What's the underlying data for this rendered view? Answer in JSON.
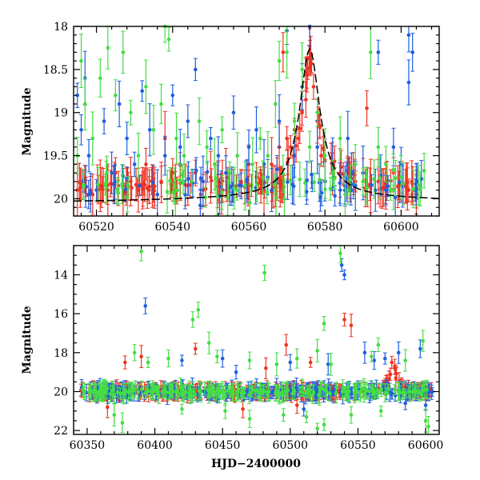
{
  "chart_data": [
    {
      "type": "scatter",
      "panel": "top",
      "title": "",
      "xlabel": "",
      "ylabel": "Magnitude",
      "xlim": [
        60514,
        60610
      ],
      "ylim": [
        20.2,
        18.0
      ],
      "y_inverted": true,
      "xticks": [
        60520,
        60540,
        60560,
        60580,
        60600
      ],
      "yticks": [
        18,
        18.5,
        19,
        19.5,
        20
      ],
      "ytick_labels": [
        "18",
        "18.5",
        "19",
        "19.5",
        "20"
      ],
      "grid": false,
      "legend": "none",
      "series": [
        {
          "color": "#ee3322",
          "values_xy": [
            [
              60515,
              19.9
            ],
            [
              60517,
              19.8
            ],
            [
              60519,
              19.95
            ],
            [
              60521,
              19.85
            ],
            [
              60523,
              19.9
            ],
            [
              60525,
              19.7
            ],
            [
              60527,
              19.95
            ],
            [
              60529,
              19.8
            ],
            [
              60531,
              19.9
            ],
            [
              60533,
              19.6
            ],
            [
              60535,
              19.9
            ],
            [
              60537,
              19.8
            ],
            [
              60538,
              19.3
            ],
            [
              60540,
              19.7
            ],
            [
              60542,
              19.6
            ],
            [
              60544,
              19.85
            ],
            [
              60546,
              19.7
            ],
            [
              60548,
              19.9
            ],
            [
              60550,
              19.75
            ],
            [
              60552,
              19.8
            ],
            [
              60554,
              19.7
            ],
            [
              60556,
              19.85
            ],
            [
              60558,
              19.8
            ],
            [
              60560,
              19.6
            ],
            [
              60562,
              19.75
            ],
            [
              60564,
              19.9
            ],
            [
              60566,
              19.6
            ],
            [
              60568,
              19.4
            ],
            [
              60569,
              18.3
            ],
            [
              60570,
              19.3
            ],
            [
              60571,
              19.4
            ],
            [
              60572,
              19.2
            ],
            [
              60573,
              19.3
            ],
            [
              60574,
              19.0
            ],
            [
              60575,
              18.85
            ],
            [
              60576,
              18.3
            ],
            [
              60577,
              18.7
            ],
            [
              60578,
              19.1
            ],
            [
              60579,
              19.5
            ],
            [
              60580,
              19.55
            ],
            [
              60582,
              19.65
            ],
            [
              60584,
              19.7
            ],
            [
              60586,
              19.75
            ],
            [
              60588,
              19.8
            ],
            [
              60590,
              19.7
            ],
            [
              60591,
              18.95
            ],
            [
              60592,
              19.85
            ],
            [
              60594,
              19.8
            ],
            [
              60596,
              19.85
            ],
            [
              60598,
              19.7
            ],
            [
              60600,
              19.75
            ],
            [
              60602,
              19.9
            ],
            [
              60604,
              19.95
            ]
          ]
        },
        {
          "color": "#1f5fe0",
          "values_xy": [
            [
              60515,
              18.8
            ],
            [
              60516,
              19.2
            ],
            [
              60517,
              18.6
            ],
            [
              60518,
              19.5
            ],
            [
              60520,
              19.9
            ],
            [
              60522,
              19.1
            ],
            [
              60524,
              19.7
            ],
            [
              60526,
              18.9
            ],
            [
              60528,
              19.3
            ],
            [
              60530,
              19.6
            ],
            [
              60532,
              18.75
            ],
            [
              60534,
              19.2
            ],
            [
              60536,
              19.95
            ],
            [
              60538,
              19.5
            ],
            [
              60540,
              18.8
            ],
            [
              60542,
              19.4
            ],
            [
              60544,
              19.1
            ],
            [
              60546,
              18.5
            ],
            [
              60548,
              19.8
            ],
            [
              60550,
              19.3
            ],
            [
              60552,
              19.5
            ],
            [
              60554,
              19.7
            ],
            [
              60556,
              19.0
            ],
            [
              60558,
              19.85
            ],
            [
              60560,
              19.4
            ],
            [
              60562,
              19.2
            ],
            [
              60564,
              19.6
            ],
            [
              60566,
              19.9
            ],
            [
              60568,
              19.1
            ],
            [
              60570,
              18.05
            ],
            [
              60572,
              19.5
            ],
            [
              60574,
              18.7
            ],
            [
              60576,
              18.0
            ],
            [
              60578,
              19.4
            ],
            [
              60580,
              19.8
            ],
            [
              60582,
              19.6
            ],
            [
              60584,
              19.9
            ],
            [
              60586,
              19.3
            ],
            [
              60588,
              19.85
            ],
            [
              60590,
              19.7
            ],
            [
              60594,
              18.3
            ],
            [
              60596,
              19.9
            ],
            [
              60598,
              19.4
            ],
            [
              60600,
              19.6
            ],
            [
              60602,
              18.1
            ],
            [
              60603,
              18.3
            ],
            [
              60602,
              18.65
            ]
          ]
        },
        {
          "color": "#44dd44",
          "values_xy": [
            [
              60515,
              19.5
            ],
            [
              60516,
              18.4
            ],
            [
              60517,
              18.9
            ],
            [
              60519,
              19.3
            ],
            [
              60521,
              18.6
            ],
            [
              60523,
              18.25
            ],
            [
              60525,
              18.8
            ],
            [
              60527,
              18.3
            ],
            [
              60529,
              19.0
            ],
            [
              60531,
              19.5
            ],
            [
              60533,
              18.7
            ],
            [
              60535,
              19.2
            ],
            [
              60537,
              18.9
            ],
            [
              60538,
              18.0
            ],
            [
              60539,
              18.15
            ],
            [
              60541,
              19.3
            ],
            [
              60543,
              19.5
            ],
            [
              60545,
              19.8
            ],
            [
              60547,
              19.1
            ],
            [
              60549,
              19.4
            ],
            [
              60551,
              19.6
            ],
            [
              60553,
              19.2
            ],
            [
              60555,
              19.7
            ],
            [
              60557,
              19.5
            ],
            [
              60559,
              19.85
            ],
            [
              60561,
              19.6
            ],
            [
              60563,
              19.3
            ],
            [
              60565,
              19.5
            ],
            [
              60567,
              18.9
            ],
            [
              60568,
              18.4
            ],
            [
              60570,
              18.3
            ],
            [
              60572,
              19.1
            ],
            [
              60574,
              18.5
            ],
            [
              60576,
              19.4
            ],
            [
              60578,
              19.0
            ],
            [
              60580,
              19.5
            ],
            [
              60582,
              19.7
            ],
            [
              60584,
              19.3
            ],
            [
              60586,
              19.9
            ],
            [
              60588,
              19.6
            ],
            [
              60590,
              19.8
            ],
            [
              60592,
              18.3
            ],
            [
              60594,
              19.4
            ],
            [
              60596,
              19.6
            ],
            [
              60598,
              19.9
            ],
            [
              60600,
              19.75
            ]
          ]
        }
      ],
      "model_curve": {
        "color": "#000000",
        "style": "dashed",
        "peak_x": 60576,
        "peak_mag": 18.45,
        "baseline_mag": 20.0
      }
    },
    {
      "type": "scatter",
      "panel": "bottom",
      "title": "",
      "xlabel": "HJD−2400000",
      "ylabel": "Magnitude",
      "xlim": [
        60340,
        60610
      ],
      "ylim": [
        22.2,
        12.5
      ],
      "y_inverted": true,
      "xticks": [
        60350,
        60400,
        60450,
        60500,
        60550,
        60600
      ],
      "yticks": [
        14,
        16,
        18,
        20,
        22
      ],
      "ytick_labels": [
        "14",
        "16",
        "18",
        "20",
        "22"
      ],
      "grid": false,
      "legend": "none",
      "series": [
        {
          "color": "#ee3322",
          "baseline": 20.0,
          "x_range": [
            60345,
            60605
          ],
          "outliers_xy": [
            [
              60390,
              18.2
            ],
            [
              60430,
              17.8
            ],
            [
              60482,
              18.8
            ],
            [
              60497,
              17.6
            ],
            [
              60540,
              16.3
            ],
            [
              60545,
              16.6
            ],
            [
              60515,
              18.5
            ],
            [
              60575,
              18.5
            ],
            [
              60578,
              19.3
            ],
            [
              60465,
              20.9
            ],
            [
              60365,
              20.8
            ],
            [
              60378,
              18.5
            ],
            [
              60505,
              20.7
            ]
          ]
        },
        {
          "color": "#1f5fe0",
          "baseline": 20.0,
          "x_range": [
            60345,
            60605
          ],
          "outliers_xy": [
            [
              60393,
              15.6
            ],
            [
              60538,
              13.5
            ],
            [
              60540,
              14.0
            ],
            [
              60420,
              18.4
            ],
            [
              60450,
              18.3
            ],
            [
              60500,
              18.5
            ],
            [
              60528,
              18.6
            ],
            [
              60555,
              18.0
            ],
            [
              60562,
              18.4
            ],
            [
              60570,
              18.3
            ],
            [
              60580,
              18.0
            ],
            [
              60596,
              17.8
            ],
            [
              60460,
              19.0
            ],
            [
              60510,
              20.9
            ],
            [
              60585,
              20.6
            ],
            [
              60600,
              20.7
            ]
          ]
        },
        {
          "color": "#44dd44",
          "baseline": 20.0,
          "x_range": [
            60345,
            60605
          ],
          "outliers_xy": [
            [
              60390,
              12.8
            ],
            [
              60537,
              12.9
            ],
            [
              60481,
              13.9
            ],
            [
              60428,
              16.3
            ],
            [
              60432,
              15.8
            ],
            [
              60525,
              16.5
            ],
            [
              60385,
              18.0
            ],
            [
              60395,
              18.5
            ],
            [
              60410,
              18.3
            ],
            [
              60440,
              17.5
            ],
            [
              60446,
              18.2
            ],
            [
              60470,
              18.4
            ],
            [
              60490,
              18.6
            ],
            [
              60505,
              18.3
            ],
            [
              60520,
              17.9
            ],
            [
              60530,
              18.6
            ],
            [
              60560,
              18.2
            ],
            [
              60565,
              17.6
            ],
            [
              60585,
              18.4
            ],
            [
              60598,
              17.4
            ],
            [
              60370,
              21.2
            ],
            [
              60376,
              21.6
            ],
            [
              60420,
              20.9
            ],
            [
              60452,
              21.0
            ],
            [
              60470,
              21.4
            ],
            [
              60495,
              21.2
            ],
            [
              60512,
              21.3
            ],
            [
              60520,
              21.9
            ],
            [
              60525,
              21.7
            ],
            [
              60545,
              21.2
            ],
            [
              60567,
              21.0
            ],
            [
              60600,
              21.5
            ],
            [
              60602,
              21.8
            ]
          ]
        }
      ]
    }
  ]
}
